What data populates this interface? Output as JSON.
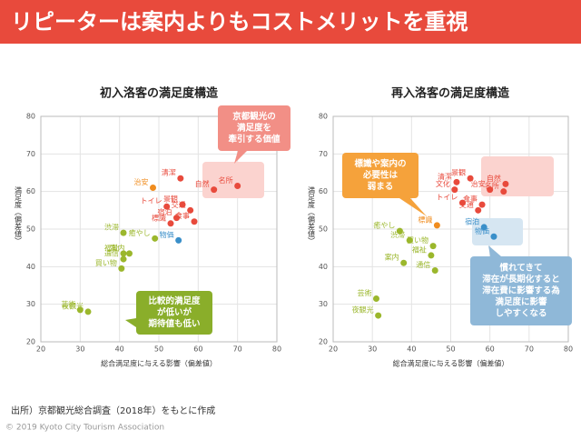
{
  "header": {
    "title": "リピーターは案内よりもコストメリットを重視"
  },
  "footer": {
    "source": "出所）京都観光総合調査（2018年）をもとに作成",
    "copyright": "© 2019 Kyoto City Tourism Association"
  },
  "chart_data": [
    {
      "type": "scatter",
      "title": "初入洛客の満足度構造",
      "x_label": "総合満足度に与える影響（偏差値）",
      "y_label": "満足度（偏差値）",
      "xlim": [
        20,
        80
      ],
      "ylim": [
        20,
        80
      ],
      "xticks": [
        20,
        30,
        40,
        50,
        60,
        70,
        80
      ],
      "yticks": [
        20,
        30,
        40,
        50,
        60,
        70,
        80
      ],
      "grid": true,
      "series": [
        {
          "color": "#f08c1e",
          "labels": [
            "治安"
          ],
          "x": [
            48.5
          ],
          "values": [
            61
          ]
        },
        {
          "color": "#e84a3c",
          "labels": [
            "清潔",
            "自然",
            "名所",
            "トイレ",
            "景観",
            "交通",
            "食事",
            "標識",
            "宿泊"
          ],
          "x": [
            55.5,
            64,
            70,
            52,
            56,
            58,
            59,
            53,
            54.5
          ],
          "values": [
            63.5,
            60.5,
            61.5,
            56,
            56.5,
            55,
            52,
            51.5,
            53
          ]
        },
        {
          "color": "#3a8fc9",
          "labels": [
            "物価"
          ],
          "x": [
            55
          ],
          "values": [
            47
          ]
        },
        {
          "color": "#9bb72c",
          "labels": [
            "渋滞",
            "癒やし",
            "福祉",
            "案内",
            "通信",
            "買い物",
            "芸術",
            "夜観光"
          ],
          "x": [
            41,
            49,
            41,
            42.5,
            41,
            40.5,
            30,
            32
          ],
          "values": [
            49,
            47.5,
            43.5,
            43.5,
            42,
            39.5,
            28.5,
            28
          ]
        }
      ],
      "annotations": [
        {
          "lines": [
            "京都観光の",
            "満足度を",
            "牽引する価値"
          ],
          "color": "#f28f86"
        },
        {
          "lines": [
            "比較的満足度",
            "が低いが",
            "期待値も低い"
          ],
          "color": "#8aae2a"
        }
      ]
    },
    {
      "type": "scatter",
      "title": "再入洛客の満足度構造",
      "x_label": "総合満足度に与える影響（偏差値）",
      "y_label": "満足度（偏差値）",
      "xlim": [
        20,
        80
      ],
      "ylim": [
        20,
        80
      ],
      "xticks": [
        20,
        30,
        40,
        50,
        60,
        70,
        80
      ],
      "yticks": [
        20,
        30,
        40,
        50,
        60,
        70,
        80
      ],
      "grid": true,
      "series": [
        {
          "color": "#f08c1e",
          "labels": [
            "標識"
          ],
          "x": [
            46.5
          ],
          "values": [
            51
          ]
        },
        {
          "color": "#e84a3c",
          "labels": [
            "清潔",
            "景観",
            "文化",
            "治安",
            "自然",
            "名所",
            "トイレ",
            "食事",
            "交通"
          ],
          "x": [
            51.5,
            55,
            51,
            60,
            64,
            63.5,
            53,
            58,
            57
          ],
          "values": [
            62.5,
            63.5,
            60.5,
            60.5,
            62,
            60,
            57,
            56.5,
            55
          ]
        },
        {
          "color": "#3a8fc9",
          "labels": [
            "宿泊",
            "物価"
          ],
          "x": [
            58.5,
            61
          ],
          "values": [
            50.5,
            48
          ]
        },
        {
          "color": "#9bb72c",
          "labels": [
            "癒やし",
            "渋滞",
            "買い物",
            "福祉",
            "案内",
            "通信",
            "芸術",
            "夜観光"
          ],
          "x": [
            37,
            39.5,
            45.5,
            45,
            38,
            46,
            31,
            31.5
          ],
          "values": [
            49.5,
            47,
            45.5,
            43,
            41,
            39,
            31.5,
            27
          ]
        }
      ],
      "annotations": [
        {
          "lines": [
            "標識や案内の",
            "必要性は",
            "弱まる"
          ],
          "color": "#f5a23b"
        },
        {
          "lines": [
            "慣れてきて",
            "滞在が長期化すると",
            "滞在費に影響する為",
            "満足度に影響",
            "しやすくなる"
          ],
          "color": "#8fb8d8"
        }
      ]
    }
  ]
}
